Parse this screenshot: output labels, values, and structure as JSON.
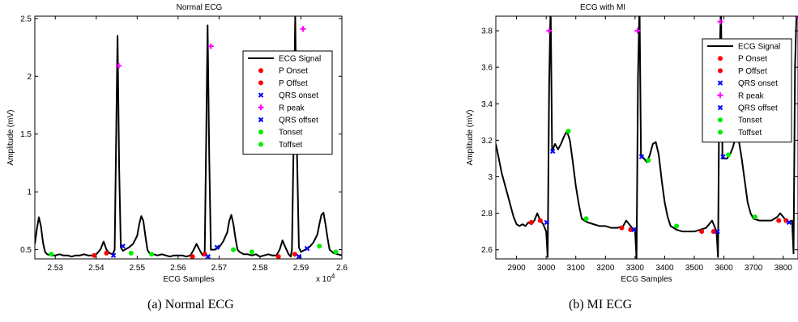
{
  "chart_data": [
    {
      "type": "line",
      "title": "Normal ECG",
      "xlabel": "ECG Samples",
      "ylabel": "Amplitude (mV)",
      "x_multiplier_label": "x 10",
      "x_multiplier_exp": "4",
      "xlim": [
        2.525,
        2.6
      ],
      "ylim": [
        0.42,
        2.52
      ],
      "xticks": [
        2.53,
        2.54,
        2.55,
        2.56,
        2.57,
        2.58,
        2.59,
        2.6
      ],
      "xtick_labels": [
        "2.53",
        "2.54",
        "2.55",
        "2.56",
        "2.57",
        "2.58",
        "2.59",
        "2.6"
      ],
      "yticks": [
        0.5,
        1,
        1.5,
        2,
        2.5
      ],
      "ytick_labels": [
        "0.5",
        "1",
        "1.5",
        "2",
        "2.5"
      ],
      "grid": false,
      "legend_position": "top-right",
      "signal": {
        "name": "ECG Signal",
        "color": "#000000",
        "x": [
          2.525,
          2.5255,
          2.526,
          2.5265,
          2.527,
          2.5275,
          2.528,
          2.529,
          2.53,
          2.531,
          2.532,
          2.533,
          2.534,
          2.535,
          2.536,
          2.537,
          2.538,
          2.539,
          2.54,
          2.541,
          2.5418,
          2.5425,
          2.5432,
          2.544,
          2.5445,
          2.5448,
          2.5452,
          2.5456,
          2.546,
          2.5465,
          2.547,
          2.548,
          2.549,
          2.55,
          2.5505,
          2.551,
          2.5515,
          2.552,
          2.5525,
          2.553,
          2.554,
          2.555,
          2.556,
          2.557,
          2.558,
          2.559,
          2.56,
          2.561,
          2.562,
          2.563,
          2.5638,
          2.5645,
          2.5652,
          2.566,
          2.5665,
          2.5668,
          2.5672,
          2.5676,
          2.568,
          2.5685,
          2.569,
          2.57,
          2.571,
          2.572,
          2.5725,
          2.573,
          2.5735,
          2.574,
          2.5745,
          2.575,
          2.576,
          2.577,
          2.578,
          2.579,
          2.58,
          2.581,
          2.582,
          2.583,
          2.584,
          2.5848,
          2.5855,
          2.5862,
          2.587,
          2.5875,
          2.5878,
          2.5882,
          2.5886,
          2.589,
          2.5895,
          2.59,
          2.591,
          2.592,
          2.593,
          2.594,
          2.5945,
          2.595,
          2.5955,
          2.596,
          2.5965,
          2.597,
          2.598,
          2.599,
          2.6
        ],
        "y": [
          0.55,
          0.68,
          0.78,
          0.7,
          0.56,
          0.48,
          0.46,
          0.45,
          0.45,
          0.46,
          0.45,
          0.45,
          0.44,
          0.45,
          0.45,
          0.46,
          0.45,
          0.45,
          0.46,
          0.5,
          0.57,
          0.5,
          0.47,
          0.46,
          0.5,
          1.3,
          2.35,
          1.2,
          0.52,
          0.49,
          0.5,
          0.52,
          0.55,
          0.62,
          0.72,
          0.79,
          0.75,
          0.62,
          0.5,
          0.47,
          0.46,
          0.45,
          0.46,
          0.45,
          0.44,
          0.45,
          0.45,
          0.45,
          0.44,
          0.45,
          0.5,
          0.55,
          0.5,
          0.45,
          0.48,
          1.3,
          2.44,
          1.3,
          0.5,
          0.5,
          0.5,
          0.52,
          0.57,
          0.65,
          0.75,
          0.8,
          0.72,
          0.6,
          0.5,
          0.48,
          0.46,
          0.46,
          0.45,
          0.46,
          0.44,
          0.45,
          0.46,
          0.45,
          0.45,
          0.5,
          0.58,
          0.52,
          0.46,
          0.44,
          0.5,
          1.4,
          2.52,
          1.4,
          0.52,
          0.48,
          0.5,
          0.52,
          0.56,
          0.63,
          0.72,
          0.8,
          0.82,
          0.72,
          0.6,
          0.5,
          0.47,
          0.46,
          0.45
        ]
      },
      "markers": [
        {
          "name": "P Onset",
          "symbol": "dot",
          "color": "#ff0000",
          "x": [
            2.5395,
            2.5635,
            2.5845
          ],
          "y": [
            0.45,
            0.44,
            0.44
          ]
        },
        {
          "name": "P Offset",
          "symbol": "dot",
          "color": "#ff0000",
          "x": [
            2.5425,
            2.5665,
            2.5885
          ],
          "y": [
            0.47,
            0.46,
            0.46
          ]
        },
        {
          "name": "QRS onset",
          "symbol": "x",
          "color": "#0000ff",
          "x": [
            2.5442,
            2.5673,
            2.5895
          ],
          "y": [
            0.45,
            0.44,
            0.44
          ]
        },
        {
          "name": "R peak",
          "symbol": "plus",
          "color": "#ff00ff",
          "x": [
            2.5455,
            2.568,
            2.5905
          ],
          "y": [
            2.09,
            2.26,
            2.41
          ]
        },
        {
          "name": "QRS offset",
          "symbol": "x",
          "color": "#0000ff",
          "x": [
            2.5465,
            2.5695,
            2.5915
          ],
          "y": [
            0.53,
            0.52,
            0.51
          ]
        },
        {
          "name": "Tonset",
          "symbol": "dot",
          "color": "#00ee00",
          "x": [
            2.529,
            2.5485,
            2.5735,
            2.5945
          ],
          "y": [
            0.46,
            0.47,
            0.5,
            0.53
          ]
        },
        {
          "name": "Toffset",
          "symbol": "dot",
          "color": "#00ee00",
          "x": [
            2.5535,
            2.578,
            2.5985
          ],
          "y": [
            0.46,
            0.48,
            0.48
          ]
        }
      ]
    },
    {
      "type": "line",
      "title": "ECG with MI",
      "xlabel": "ECG Samples",
      "ylabel": "Amplitude (mV)",
      "xlim": [
        2830,
        3850
      ],
      "ylim": [
        2.55,
        3.88
      ],
      "xticks": [
        2900,
        3000,
        3100,
        3200,
        3300,
        3400,
        3500,
        3600,
        3700,
        3800
      ],
      "xtick_labels": [
        "2900",
        "3000",
        "3100",
        "3200",
        "3300",
        "3400",
        "3500",
        "3600",
        "3700",
        "3800"
      ],
      "yticks": [
        2.6,
        2.8,
        3,
        3.2,
        3.4,
        3.6,
        3.8
      ],
      "ytick_labels": [
        "2.6",
        "2.8",
        "3",
        "3.2",
        "3.4",
        "3.6",
        "3.8"
      ],
      "grid": false,
      "legend_position": "top-right",
      "signal": {
        "name": "ECG Signal",
        "color": "#000000",
        "x": [
          2830,
          2840,
          2850,
          2860,
          2870,
          2880,
          2890,
          2900,
          2910,
          2920,
          2930,
          2940,
          2950,
          2960,
          2970,
          2980,
          2990,
          3000,
          3005,
          3010,
          3015,
          3020,
          3030,
          3040,
          3050,
          3060,
          3070,
          3080,
          3090,
          3100,
          3110,
          3120,
          3140,
          3160,
          3180,
          3200,
          3220,
          3240,
          3260,
          3270,
          3280,
          3290,
          3300,
          3305,
          3310,
          3315,
          3320,
          3330,
          3340,
          3350,
          3360,
          3370,
          3380,
          3390,
          3400,
          3410,
          3420,
          3440,
          3460,
          3480,
          3500,
          3520,
          3540,
          3560,
          3570,
          3575,
          3580,
          3585,
          3590,
          3595,
          3600,
          3610,
          3620,
          3630,
          3640,
          3650,
          3660,
          3670,
          3680,
          3690,
          3700,
          3720,
          3740,
          3760,
          3780,
          3790,
          3800,
          3810,
          3820,
          3830,
          3835,
          3840,
          3845,
          3850
        ],
        "y": [
          3.18,
          3.1,
          3.02,
          2.96,
          2.9,
          2.84,
          2.78,
          2.74,
          2.73,
          2.74,
          2.73,
          2.75,
          2.74,
          2.76,
          2.8,
          2.76,
          2.74,
          2.7,
          2.56,
          3.5,
          3.95,
          3.14,
          3.18,
          3.15,
          3.18,
          3.22,
          3.25,
          3.2,
          3.08,
          2.95,
          2.85,
          2.77,
          2.75,
          2.74,
          2.73,
          2.73,
          2.72,
          2.72,
          2.73,
          2.76,
          2.74,
          2.72,
          2.71,
          2.55,
          3.55,
          3.95,
          3.12,
          3.1,
          3.08,
          3.12,
          3.18,
          3.19,
          3.12,
          2.98,
          2.86,
          2.78,
          2.73,
          2.71,
          2.7,
          2.7,
          2.7,
          2.71,
          2.72,
          2.76,
          2.72,
          2.7,
          2.56,
          3.6,
          3.95,
          3.1,
          3.1,
          3.1,
          3.12,
          3.16,
          3.22,
          3.2,
          3.1,
          2.98,
          2.86,
          2.8,
          2.77,
          2.76,
          2.76,
          2.76,
          2.78,
          2.8,
          2.78,
          2.76,
          2.75,
          2.76,
          2.58,
          3.6,
          3.9,
          3.9
        ]
      },
      "markers": [
        {
          "name": "P Onset",
          "symbol": "dot",
          "color": "#ff0000",
          "x": [
            2950,
            3255,
            3525,
            3785
          ],
          "y": [
            2.75,
            2.72,
            2.7,
            2.76
          ]
        },
        {
          "name": "P Offset",
          "symbol": "dot",
          "color": "#ff0000",
          "x": [
            2980,
            3285,
            3565,
            3810
          ],
          "y": [
            2.76,
            2.71,
            2.7,
            2.76
          ]
        },
        {
          "name": "QRS onset",
          "symbol": "x",
          "color": "#0000ff",
          "x": [
            3002,
            3296,
            3578,
            3820
          ],
          "y": [
            2.75,
            2.71,
            2.7,
            2.75
          ]
        },
        {
          "name": "R peak",
          "symbol": "plus",
          "color": "#ff00ff",
          "x": [
            3010,
            3308,
            3588,
            3848
          ],
          "y": [
            3.8,
            3.8,
            3.85,
            3.88
          ]
        },
        {
          "name": "QRS offset",
          "symbol": "x",
          "color": "#0000ff",
          "x": [
            3022,
            3322,
            3597
          ],
          "y": [
            3.14,
            3.11,
            3.11
          ]
        },
        {
          "name": "Tonset",
          "symbol": "dot",
          "color": "#00ee00",
          "x": [
            3075,
            3345,
            3615
          ],
          "y": [
            3.25,
            3.09,
            3.12
          ]
        },
        {
          "name": "Toffset",
          "symbol": "dot",
          "color": "#00ee00",
          "x": [
            3135,
            3440,
            3705
          ],
          "y": [
            2.77,
            2.73,
            2.78
          ]
        }
      ]
    }
  ],
  "captions": [
    "(a)  Normal ECG",
    "(b)  MI ECG"
  ]
}
